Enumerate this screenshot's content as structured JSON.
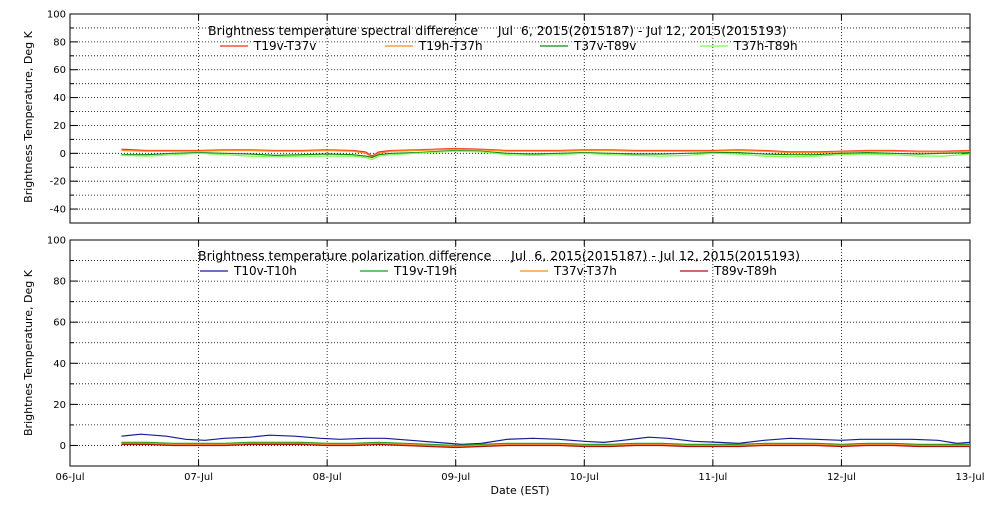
{
  "x_axis": {
    "label": "Date (EST)",
    "ticks": [
      "06-Jul",
      "07-Jul",
      "08-Jul",
      "09-Jul",
      "10-Jul",
      "11-Jul",
      "12-Jul",
      "13-Jul"
    ]
  },
  "colors": {
    "red": "#ff2a1a",
    "orange": "#ff8c1a",
    "darkgreen": "#128a12",
    "lightgreen": "#7cff4a",
    "navy": "#1a1a9a",
    "green": "#18a018",
    "darkred": "#b01010"
  },
  "chart_data": [
    {
      "type": "line",
      "title": "Brightness temperature spectral difference     Jul  6, 2015(2015187) - Jul 12, 2015(2015193)",
      "ylabel": "Brightness Temperature, Deg K",
      "xlabel": "",
      "xlim": [
        "2015-07-06",
        "2015-07-13"
      ],
      "ylim": [
        -50,
        100
      ],
      "yticks": [
        -40,
        -20,
        0,
        20,
        40,
        60,
        80,
        100
      ],
      "xticks": [
        "06-Jul",
        "07-Jul",
        "08-Jul",
        "09-Jul",
        "10-Jul",
        "11-Jul",
        "12-Jul",
        "13-Jul"
      ],
      "grid": true,
      "legend": "top",
      "series": [
        {
          "name": "T19v-T37v",
          "color": "#ff2a1a",
          "x": [
            6.4,
            6.6,
            6.8,
            7.0,
            7.2,
            7.4,
            7.6,
            7.8,
            8.0,
            8.2,
            8.3,
            8.35,
            8.4,
            8.5,
            8.7,
            9.0,
            9.2,
            9.4,
            9.6,
            9.8,
            10.0,
            10.2,
            10.4,
            10.6,
            10.8,
            11.0,
            11.2,
            11.4,
            11.6,
            11.8,
            12.0,
            12.2,
            12.4,
            12.6,
            12.8,
            13.0
          ],
          "y": [
            3,
            2,
            2,
            2,
            2.5,
            2.5,
            2,
            2,
            2.5,
            2,
            1,
            -2,
            1,
            2,
            2.5,
            3.5,
            3,
            2,
            2,
            2,
            2.5,
            2.5,
            2,
            2,
            2,
            2,
            2.5,
            2,
            1,
            1,
            1.5,
            2,
            2,
            1.5,
            1.5,
            2
          ]
        },
        {
          "name": "T19h-T37h",
          "color": "#ff8c1a",
          "x": [
            6.4,
            6.6,
            6.8,
            7.0,
            7.2,
            7.4,
            7.6,
            7.8,
            8.0,
            8.2,
            8.3,
            8.35,
            8.4,
            8.5,
            8.7,
            9.0,
            9.2,
            9.4,
            9.6,
            9.8,
            10.0,
            10.2,
            10.4,
            10.6,
            10.8,
            11.0,
            11.2,
            11.4,
            11.6,
            11.8,
            12.0,
            12.2,
            12.4,
            12.6,
            12.8,
            13.0
          ],
          "y": [
            2,
            1.5,
            1.5,
            1.5,
            2,
            2,
            1.5,
            1.5,
            2,
            1.5,
            0,
            -3,
            0,
            1.5,
            2,
            3,
            2.5,
            1.5,
            1.5,
            1.5,
            2,
            2,
            1.5,
            1.5,
            1.5,
            1.5,
            2,
            1.5,
            0.5,
            0.5,
            1,
            1.5,
            1.5,
            1,
            1,
            1.5
          ]
        },
        {
          "name": "T37v-T89v",
          "color": "#128a12",
          "x": [
            6.4,
            6.6,
            6.8,
            7.0,
            7.2,
            7.4,
            7.6,
            7.8,
            8.0,
            8.2,
            8.3,
            8.35,
            8.4,
            8.5,
            8.7,
            9.0,
            9.2,
            9.4,
            9.6,
            9.8,
            10.0,
            10.2,
            10.4,
            10.6,
            10.8,
            11.0,
            11.2,
            11.4,
            11.6,
            11.8,
            12.0,
            12.2,
            12.4,
            12.6,
            12.8,
            13.0
          ],
          "y": [
            -1,
            -1,
            0,
            0.5,
            0,
            -0.5,
            -1.5,
            -1,
            -0.5,
            -1,
            -2,
            -3,
            -1,
            0,
            0.5,
            2,
            1.5,
            0,
            -0.5,
            0,
            0.5,
            0,
            -0.5,
            -0.5,
            0,
            0.5,
            0.5,
            -0.5,
            -1,
            -1,
            0,
            0.5,
            0,
            -0.5,
            0,
            0.5
          ]
        },
        {
          "name": "T37h-T89h",
          "color": "#7cff4a",
          "x": [
            6.4,
            6.6,
            6.8,
            7.0,
            7.2,
            7.4,
            7.6,
            7.8,
            8.0,
            8.2,
            8.3,
            8.35,
            8.4,
            8.5,
            8.7,
            9.0,
            9.2,
            9.4,
            9.6,
            9.8,
            10.0,
            10.2,
            10.4,
            10.6,
            10.8,
            11.0,
            11.2,
            11.4,
            11.6,
            11.8,
            12.0,
            12.2,
            12.4,
            12.6,
            12.8,
            13.0
          ],
          "y": [
            -1.5,
            -2,
            -1,
            0,
            -1,
            -2,
            -2.5,
            -2,
            -2,
            -2,
            -3,
            -4.5,
            -2,
            -1,
            0,
            1.5,
            1,
            -1,
            -1.5,
            -1,
            0,
            -1,
            -1.5,
            -2,
            -1.5,
            0,
            -0.5,
            -2,
            -2.5,
            -2,
            -1,
            -0.5,
            -1,
            -2,
            -2,
            -0.5
          ]
        }
      ]
    },
    {
      "type": "line",
      "title": "Brightness temperature polarization difference     Jul  6, 2015(2015187) - Jul 12, 2015(2015193)",
      "ylabel": "Brightnes Temperature, Deg K",
      "xlabel": "Date (EST)",
      "xlim": [
        "2015-07-06",
        "2015-07-13"
      ],
      "ylim": [
        -10,
        100
      ],
      "yticks": [
        0,
        20,
        40,
        60,
        80,
        100
      ],
      "xticks": [
        "06-Jul",
        "07-Jul",
        "08-Jul",
        "09-Jul",
        "10-Jul",
        "11-Jul",
        "12-Jul",
        "13-Jul"
      ],
      "grid": true,
      "legend": "top",
      "series": [
        {
          "name": "T10v-T10h",
          "color": "#1a1a9a",
          "x": [
            6.4,
            6.55,
            6.75,
            6.9,
            7.05,
            7.2,
            7.4,
            7.55,
            7.75,
            7.95,
            8.1,
            8.3,
            8.45,
            8.65,
            8.85,
            9.05,
            9.2,
            9.4,
            9.6,
            9.8,
            10.0,
            10.15,
            10.3,
            10.5,
            10.65,
            10.85,
            11.05,
            11.2,
            11.4,
            11.6,
            11.8,
            12.0,
            12.15,
            12.35,
            12.55,
            12.75,
            12.9,
            13.0
          ],
          "y": [
            4.5,
            5.5,
            4.5,
            3,
            2.5,
            3.5,
            4,
            5,
            4.5,
            3.5,
            3,
            3.5,
            3.5,
            2.5,
            1.5,
            0.5,
            1,
            3,
            3.5,
            3,
            2,
            1.5,
            2.5,
            4,
            3.5,
            2,
            1.5,
            1,
            2.5,
            3.5,
            3,
            2.5,
            3,
            3,
            3,
            2.5,
            1,
            1.5
          ]
        },
        {
          "name": "T19v-T19h",
          "color": "#18a018",
          "x": [
            6.4,
            6.6,
            6.8,
            7.0,
            7.2,
            7.4,
            7.6,
            7.8,
            8.0,
            8.2,
            8.4,
            8.6,
            8.8,
            9.0,
            9.2,
            9.4,
            9.6,
            9.8,
            10.0,
            10.2,
            10.4,
            10.6,
            10.8,
            11.0,
            11.2,
            11.4,
            11.6,
            11.8,
            12.0,
            12.2,
            12.4,
            12.6,
            12.8,
            13.0
          ],
          "y": [
            1.5,
            1.5,
            1,
            1,
            1,
            1.5,
            1.5,
            1.5,
            1,
            1,
            1.5,
            1,
            0.5,
            0,
            0.5,
            1,
            1,
            1,
            0.5,
            0.5,
            1,
            1,
            0.5,
            0.5,
            0.5,
            1,
            1,
            1,
            0.5,
            1,
            1,
            0.5,
            0.5,
            0.5
          ]
        },
        {
          "name": "T37v-T37h",
          "color": "#ff8c1a",
          "x": [
            6.4,
            6.6,
            6.8,
            7.0,
            7.2,
            7.4,
            7.6,
            7.8,
            8.0,
            8.2,
            8.4,
            8.6,
            8.8,
            9.0,
            9.2,
            9.4,
            9.6,
            9.8,
            10.0,
            10.2,
            10.4,
            10.6,
            10.8,
            11.0,
            11.2,
            11.4,
            11.6,
            11.8,
            12.0,
            12.2,
            12.4,
            12.6,
            12.8,
            13.0
          ],
          "y": [
            1,
            1,
            0.5,
            0.5,
            0.5,
            1,
            1,
            1,
            0.5,
            0.5,
            1,
            0.5,
            0,
            -0.5,
            0,
            0.5,
            0.5,
            0.5,
            0,
            0,
            0.5,
            0.5,
            0,
            0,
            0,
            0.5,
            0.5,
            0.5,
            0,
            0.5,
            0.5,
            0,
            0,
            0
          ]
        },
        {
          "name": "T89v-T89h",
          "color": "#b01010",
          "x": [
            6.4,
            6.6,
            6.8,
            7.0,
            7.2,
            7.4,
            7.6,
            7.8,
            8.0,
            8.2,
            8.4,
            8.6,
            8.8,
            9.0,
            9.2,
            9.4,
            9.6,
            9.8,
            10.0,
            10.2,
            10.4,
            10.6,
            10.8,
            11.0,
            11.2,
            11.4,
            11.6,
            11.8,
            12.0,
            12.2,
            12.4,
            12.6,
            12.8,
            13.0
          ],
          "y": [
            0.5,
            0.5,
            0,
            0,
            0,
            0.5,
            0.5,
            0.5,
            0,
            0,
            0.5,
            0,
            -0.5,
            -1,
            -0.5,
            0,
            0,
            0,
            -0.5,
            -0.5,
            0,
            0,
            -0.5,
            -0.5,
            -0.5,
            0,
            0,
            0,
            -0.5,
            0,
            0,
            -0.5,
            -0.5,
            -0.5
          ]
        }
      ]
    }
  ]
}
